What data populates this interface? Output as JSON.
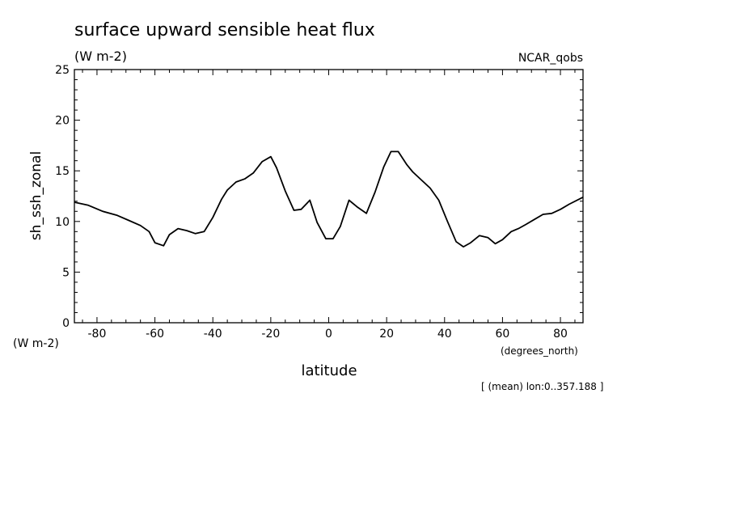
{
  "chart_data": {
    "type": "line",
    "title": "surface upward sensible heat flux",
    "title_units": "(W m-2)",
    "dataset": "NCAR_qobs",
    "ylabel": "sh_ssh_zonal",
    "y_units": "(W m-2)",
    "xlabel": "latitude",
    "x_units": "(degrees_north)",
    "footnote": "[ (mean) lon:0..357.188 ]",
    "xlim": [
      -87.8,
      87.8
    ],
    "ylim": [
      0,
      25
    ],
    "x_ticks": [
      -80,
      -60,
      -40,
      -20,
      0,
      20,
      40,
      60,
      80
    ],
    "x_tick_labels": [
      "-80",
      "-60",
      "-40",
      "-20",
      "0",
      "20",
      "40",
      "60",
      "80"
    ],
    "y_ticks": [
      0,
      5,
      10,
      15,
      20,
      25
    ],
    "y_tick_labels": [
      "0",
      "5",
      "10",
      "15",
      "20",
      "25"
    ],
    "grid": false,
    "line_color": "#000000",
    "series": [
      {
        "x": [
          -87.8,
          -83.0,
          -78.0,
          -73.0,
          -69.0,
          -65.0,
          -62.0,
          -60.0,
          -57.0,
          -55.0,
          -52.0,
          -49.0,
          -46.0,
          -43.0,
          -40.0,
          -37.0,
          -35.0,
          -32.0,
          -29.0,
          -26.0,
          -23.0,
          -20.0,
          -18.0,
          -15.0,
          -12.0,
          -9.5,
          -6.5,
          -4.0,
          -1.0,
          1.5,
          4.0,
          7.0,
          10.0,
          13.0,
          16.0,
          19.0,
          21.5,
          24.0,
          27.0,
          29.0,
          32.0,
          35.0,
          38.0,
          41.0,
          44.0,
          46.5,
          49.0,
          52.0,
          55.0,
          57.5,
          60.0,
          63.0,
          65.5,
          68.0,
          71.0,
          74.0,
          77.0,
          80.0,
          83.0,
          87.8
        ],
        "y": [
          11.9,
          11.6,
          11.0,
          10.6,
          10.1,
          9.6,
          9.0,
          7.9,
          7.6,
          8.7,
          9.3,
          9.1,
          8.8,
          9.0,
          10.4,
          12.2,
          13.1,
          13.9,
          14.2,
          14.8,
          15.9,
          16.4,
          15.3,
          13.0,
          11.1,
          11.2,
          12.1,
          9.9,
          8.3,
          8.3,
          9.5,
          12.1,
          11.4,
          10.8,
          12.9,
          15.4,
          16.9,
          16.9,
          15.6,
          14.9,
          14.1,
          13.3,
          12.1,
          10.0,
          8.0,
          7.5,
          7.9,
          8.6,
          8.4,
          7.8,
          8.2,
          9.0,
          9.3,
          9.7,
          10.2,
          10.7,
          10.8,
          11.2,
          11.7,
          12.4
        ]
      }
    ]
  }
}
